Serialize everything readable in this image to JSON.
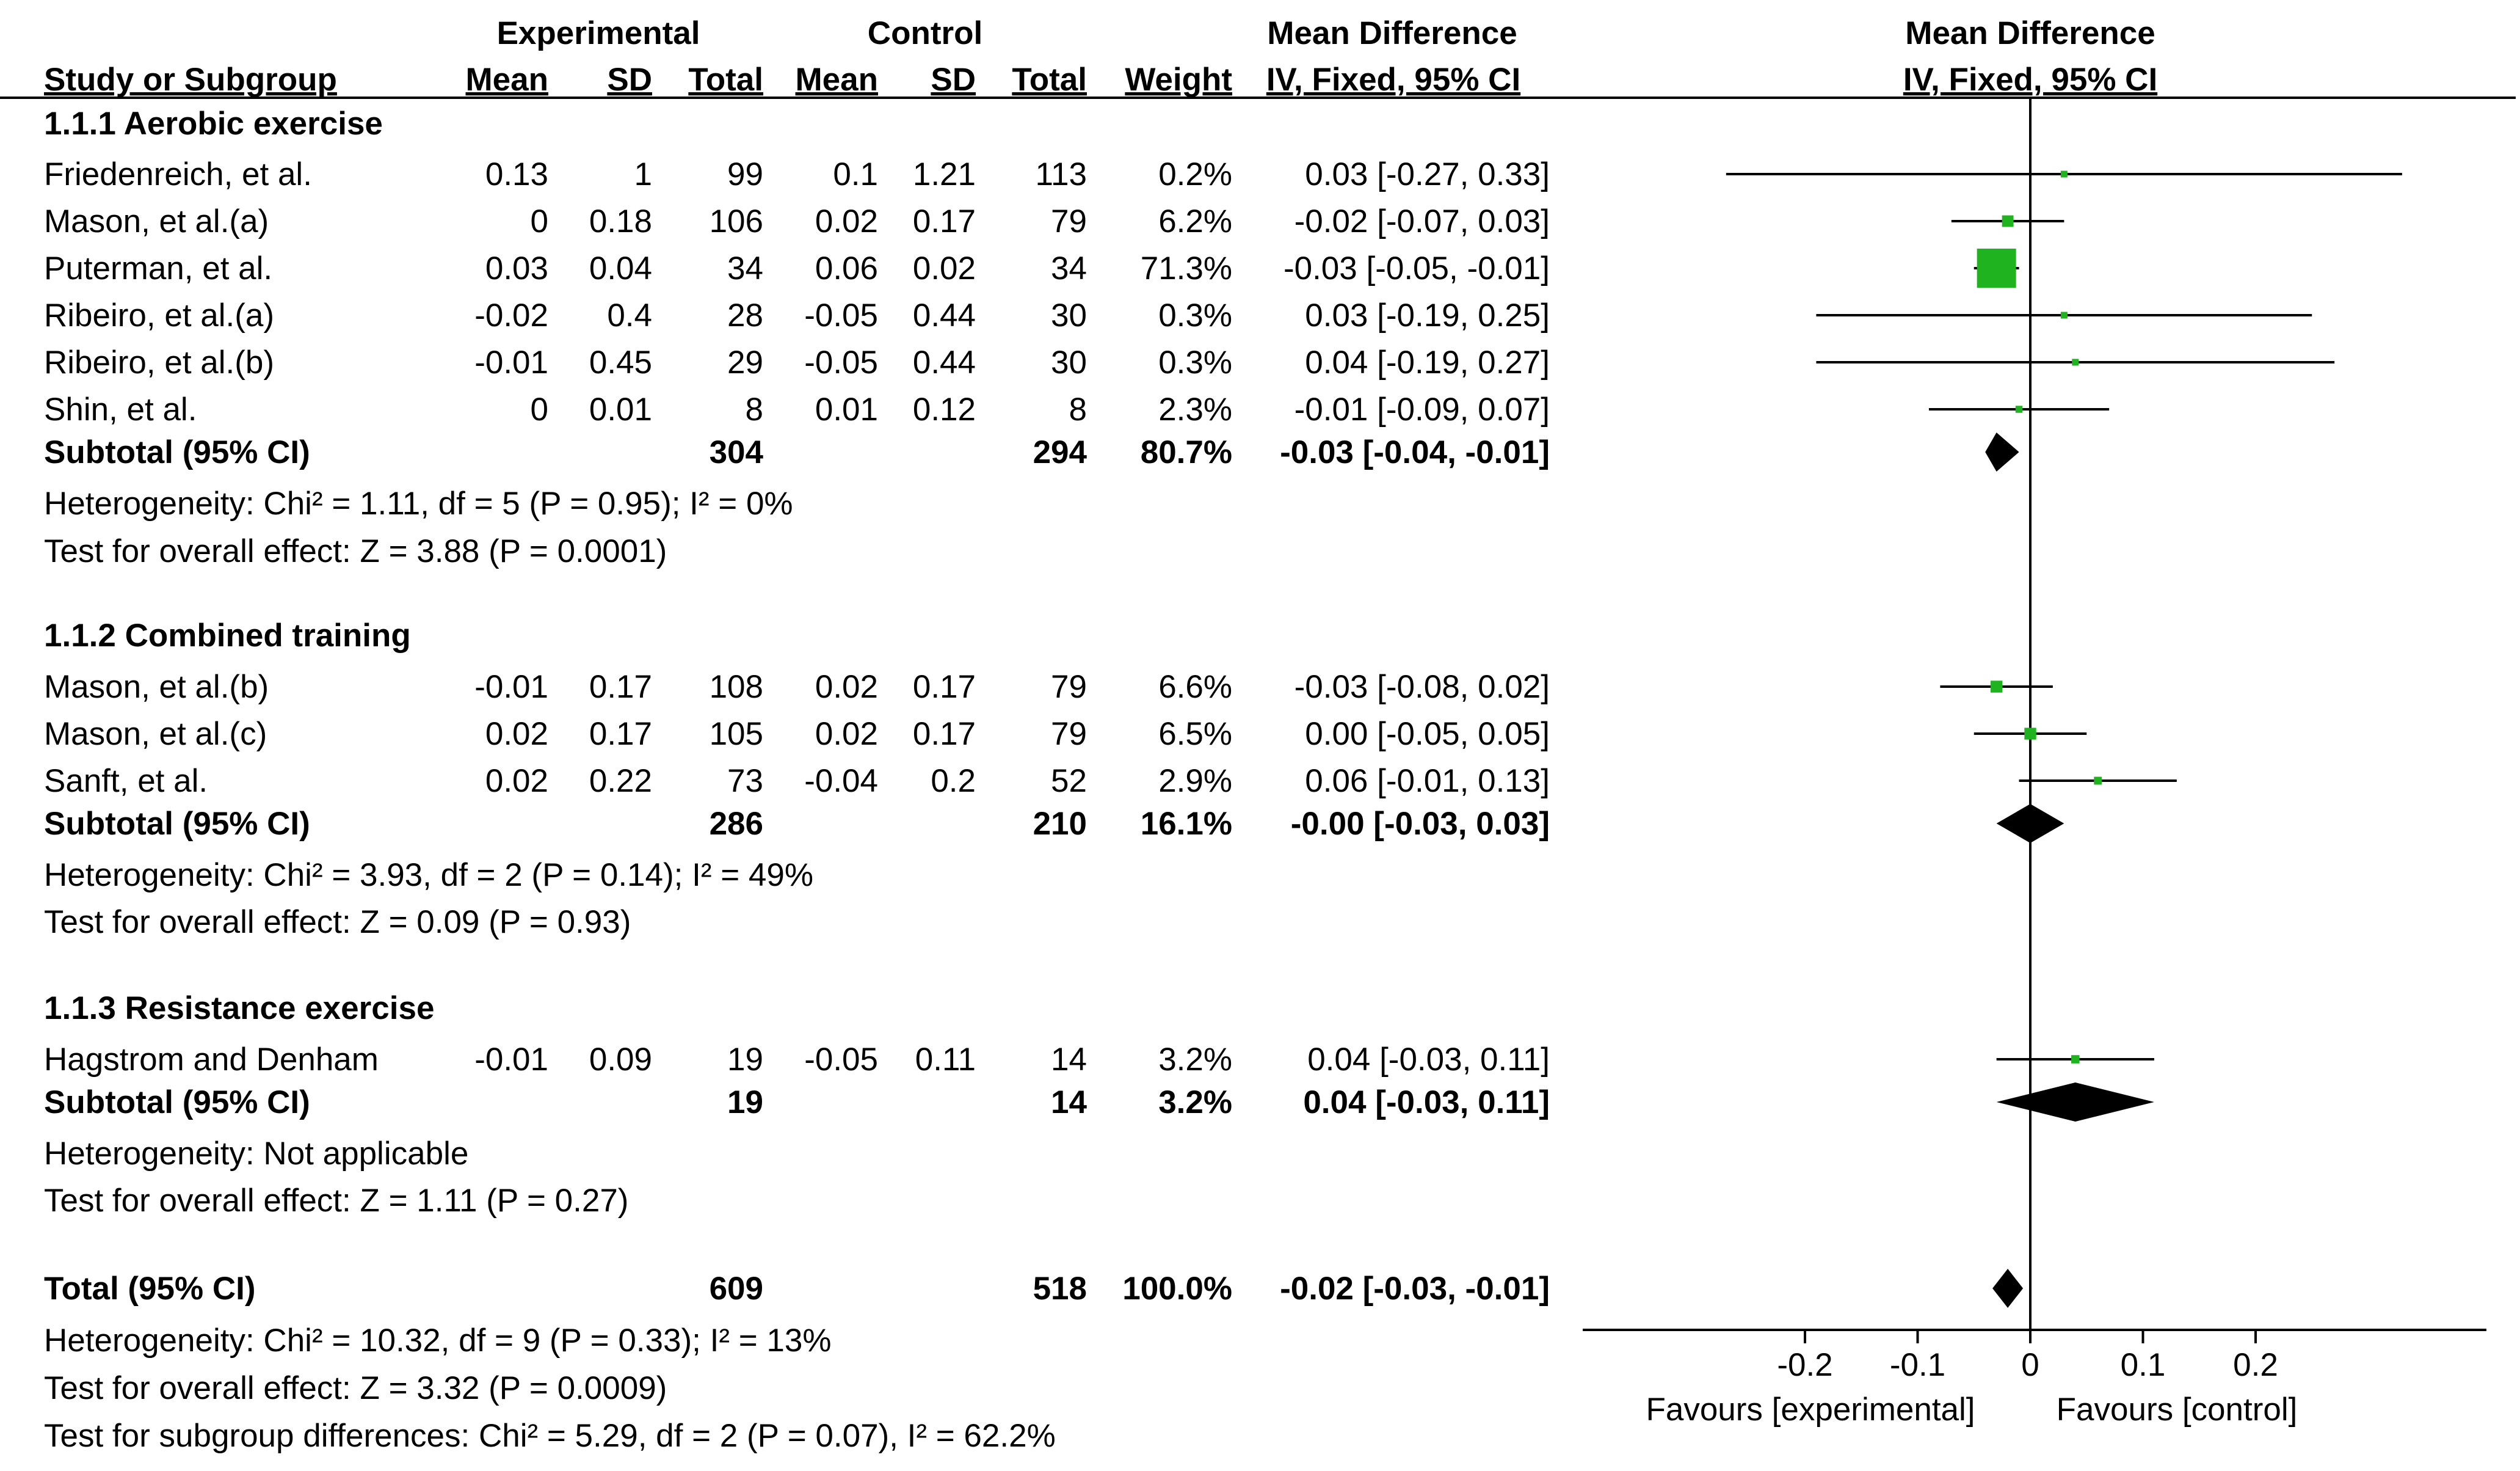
{
  "headers": {
    "experimental": "Experimental",
    "control": "Control",
    "mean_difference": "Mean Difference",
    "plot_title": "Mean Difference",
    "study_or_subgroup": "Study or Subgroup",
    "mean": "Mean",
    "sd": "SD",
    "total": "Total",
    "weight": "Weight",
    "method": "IV, Fixed, 95% CI"
  },
  "subgroups": [
    {
      "title": "1.1.1 Aerobic exercise",
      "studies": [
        {
          "name": "Friedenreich, et al.",
          "e_mean": "0.13",
          "e_sd": "1",
          "e_total": "99",
          "c_mean": "0.1",
          "c_sd": "1.21",
          "c_total": "113",
          "weight": "0.2%",
          "ci": "0.03 [-0.27, 0.33]",
          "md": 0.03,
          "lo": -0.27,
          "hi": 0.33,
          "w": 0.2
        },
        {
          "name": "Mason, et al.(a)",
          "e_mean": "0",
          "e_sd": "0.18",
          "e_total": "106",
          "c_mean": "0.02",
          "c_sd": "0.17",
          "c_total": "79",
          "weight": "6.2%",
          "ci": "-0.02 [-0.07, 0.03]",
          "md": -0.02,
          "lo": -0.07,
          "hi": 0.03,
          "w": 6.2
        },
        {
          "name": "Puterman, et al.",
          "e_mean": "0.03",
          "e_sd": "0.04",
          "e_total": "34",
          "c_mean": "0.06",
          "c_sd": "0.02",
          "c_total": "34",
          "weight": "71.3%",
          "ci": "-0.03 [-0.05, -0.01]",
          "md": -0.03,
          "lo": -0.05,
          "hi": -0.01,
          "w": 71.3
        },
        {
          "name": "Ribeiro, et al.(a)",
          "e_mean": "-0.02",
          "e_sd": "0.4",
          "e_total": "28",
          "c_mean": "-0.05",
          "c_sd": "0.44",
          "c_total": "30",
          "weight": "0.3%",
          "ci": "0.03 [-0.19, 0.25]",
          "md": 0.03,
          "lo": -0.19,
          "hi": 0.25,
          "w": 0.3
        },
        {
          "name": "Ribeiro, et al.(b)",
          "e_mean": "-0.01",
          "e_sd": "0.45",
          "e_total": "29",
          "c_mean": "-0.05",
          "c_sd": "0.44",
          "c_total": "30",
          "weight": "0.3%",
          "ci": "0.04 [-0.19, 0.27]",
          "md": 0.04,
          "lo": -0.19,
          "hi": 0.27,
          "w": 0.3
        },
        {
          "name": "Shin, et al.",
          "e_mean": "0",
          "e_sd": "0.01",
          "e_total": "8",
          "c_mean": "0.01",
          "c_sd": "0.12",
          "c_total": "8",
          "weight": "2.3%",
          "ci": "-0.01 [-0.09, 0.07]",
          "md": -0.01,
          "lo": -0.09,
          "hi": 0.07,
          "w": 2.3
        }
      ],
      "subtotal": {
        "label": "Subtotal (95% CI)",
        "e_total": "304",
        "c_total": "294",
        "weight": "80.7%",
        "ci": "-0.03 [-0.04, -0.01]",
        "md": -0.03,
        "lo": -0.04,
        "hi": -0.01
      },
      "heterogeneity": "Heterogeneity: Chi² = 1.11, df = 5 (P = 0.95); I² = 0%",
      "overall": "Test for overall effect: Z = 3.88 (P = 0.0001)"
    },
    {
      "title": "1.1.2 Combined training",
      "studies": [
        {
          "name": "Mason, et al.(b)",
          "e_mean": "-0.01",
          "e_sd": "0.17",
          "e_total": "108",
          "c_mean": "0.02",
          "c_sd": "0.17",
          "c_total": "79",
          "weight": "6.6%",
          "ci": "-0.03 [-0.08, 0.02]",
          "md": -0.03,
          "lo": -0.08,
          "hi": 0.02,
          "w": 6.6
        },
        {
          "name": "Mason, et al.(c)",
          "e_mean": "0.02",
          "e_sd": "0.17",
          "e_total": "105",
          "c_mean": "0.02",
          "c_sd": "0.17",
          "c_total": "79",
          "weight": "6.5%",
          "ci": "0.00 [-0.05, 0.05]",
          "md": 0.0,
          "lo": -0.05,
          "hi": 0.05,
          "w": 6.5
        },
        {
          "name": "Sanft, et al.",
          "e_mean": "0.02",
          "e_sd": "0.22",
          "e_total": "73",
          "c_mean": "-0.04",
          "c_sd": "0.2",
          "c_total": "52",
          "weight": "2.9%",
          "ci": "0.06 [-0.01, 0.13]",
          "md": 0.06,
          "lo": -0.01,
          "hi": 0.13,
          "w": 2.9
        }
      ],
      "subtotal": {
        "label": "Subtotal (95% CI)",
        "e_total": "286",
        "c_total": "210",
        "weight": "16.1%",
        "ci": "-0.00 [-0.03, 0.03]",
        "md": 0.0,
        "lo": -0.03,
        "hi": 0.03
      },
      "heterogeneity": "Heterogeneity: Chi² = 3.93, df = 2 (P = 0.14); I² = 49%",
      "overall": "Test for overall effect: Z = 0.09 (P = 0.93)"
    },
    {
      "title": "1.1.3 Resistance exercise",
      "studies": [
        {
          "name": "Hagstrom and Denham",
          "e_mean": "-0.01",
          "e_sd": "0.09",
          "e_total": "19",
          "c_mean": "-0.05",
          "c_sd": "0.11",
          "c_total": "14",
          "weight": "3.2%",
          "ci": "0.04 [-0.03, 0.11]",
          "md": 0.04,
          "lo": -0.03,
          "hi": 0.11,
          "w": 3.2
        }
      ],
      "subtotal": {
        "label": "Subtotal (95% CI)",
        "e_total": "19",
        "c_total": "14",
        "weight": "3.2%",
        "ci": "0.04 [-0.03, 0.11]",
        "md": 0.04,
        "lo": -0.03,
        "hi": 0.11
      },
      "heterogeneity": "Heterogeneity: Not applicable",
      "overall": "Test for overall effect: Z = 1.11 (P = 0.27)"
    }
  ],
  "total": {
    "label": "Total (95% CI)",
    "e_total": "609",
    "c_total": "518",
    "weight": "100.0%",
    "ci": "-0.02 [-0.03, -0.01]",
    "md": -0.02,
    "lo": -0.03,
    "hi": -0.01
  },
  "footer": {
    "heterogeneity": "Heterogeneity: Chi² = 10.32, df = 9 (P = 0.33); I² = 13%",
    "overall": "Test for overall effect: Z = 3.32 (P = 0.0009)",
    "subgroup_diff": "Test for subgroup differences: Chi² = 5.29, df = 2 (P = 0.07), I² = 62.2%"
  },
  "axis": {
    "ticks": [
      -0.2,
      -0.1,
      0,
      0.1,
      0.2
    ],
    "tick_labels": [
      "-0.2",
      "-0.1",
      "0",
      "0.1",
      "0.2"
    ],
    "xlim": [
      -0.4,
      0.4
    ],
    "favours_left": "Favours [experimental]",
    "favours_right": "Favours [control]"
  },
  "colors": {
    "square": "#1fb41f",
    "diamond": "#000000",
    "line": "#000000"
  },
  "chart_data": {
    "type": "forest",
    "title": "Mean Difference IV, Fixed, 95% CI",
    "xlabel": "",
    "xlim": [
      -0.4,
      0.4
    ],
    "ticks": [
      -0.2,
      -0.1,
      0,
      0.1,
      0.2
    ],
    "studies": [
      {
        "name": "Friedenreich, et al.",
        "subgroup": "1.1.1 Aerobic exercise",
        "md": 0.03,
        "lo": -0.27,
        "hi": 0.33,
        "weight": 0.2
      },
      {
        "name": "Mason, et al.(a)",
        "subgroup": "1.1.1 Aerobic exercise",
        "md": -0.02,
        "lo": -0.07,
        "hi": 0.03,
        "weight": 6.2
      },
      {
        "name": "Puterman, et al.",
        "subgroup": "1.1.1 Aerobic exercise",
        "md": -0.03,
        "lo": -0.05,
        "hi": -0.01,
        "weight": 71.3
      },
      {
        "name": "Ribeiro, et al.(a)",
        "subgroup": "1.1.1 Aerobic exercise",
        "md": 0.03,
        "lo": -0.19,
        "hi": 0.25,
        "weight": 0.3
      },
      {
        "name": "Ribeiro, et al.(b)",
        "subgroup": "1.1.1 Aerobic exercise",
        "md": 0.04,
        "lo": -0.19,
        "hi": 0.27,
        "weight": 0.3
      },
      {
        "name": "Shin, et al.",
        "subgroup": "1.1.1 Aerobic exercise",
        "md": -0.01,
        "lo": -0.09,
        "hi": 0.07,
        "weight": 2.3
      },
      {
        "name": "Mason, et al.(b)",
        "subgroup": "1.1.2 Combined training",
        "md": -0.03,
        "lo": -0.08,
        "hi": 0.02,
        "weight": 6.6
      },
      {
        "name": "Mason, et al.(c)",
        "subgroup": "1.1.2 Combined training",
        "md": 0.0,
        "lo": -0.05,
        "hi": 0.05,
        "weight": 6.5
      },
      {
        "name": "Sanft, et al.",
        "subgroup": "1.1.2 Combined training",
        "md": 0.06,
        "lo": -0.01,
        "hi": 0.13,
        "weight": 2.9
      },
      {
        "name": "Hagstrom and Denham",
        "subgroup": "1.1.3 Resistance exercise",
        "md": 0.04,
        "lo": -0.03,
        "hi": 0.11,
        "weight": 3.2
      }
    ],
    "subtotals": [
      {
        "subgroup": "1.1.1 Aerobic exercise",
        "md": -0.03,
        "lo": -0.04,
        "hi": -0.01,
        "weight": 80.7
      },
      {
        "subgroup": "1.1.2 Combined training",
        "md": 0.0,
        "lo": -0.03,
        "hi": 0.03,
        "weight": 16.1
      },
      {
        "subgroup": "1.1.3 Resistance exercise",
        "md": 0.04,
        "lo": -0.03,
        "hi": 0.11,
        "weight": 3.2
      }
    ],
    "overall": {
      "md": -0.02,
      "lo": -0.03,
      "hi": -0.01,
      "weight": 100.0
    }
  }
}
